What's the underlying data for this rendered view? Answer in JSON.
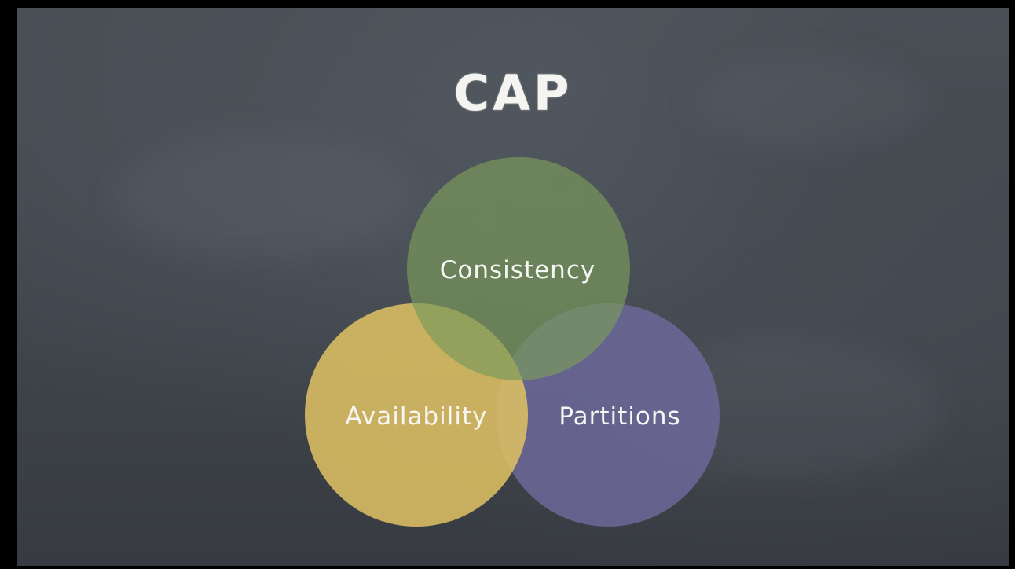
{
  "title": "CAP",
  "venn": {
    "circles": [
      {
        "id": "consistency",
        "label": "Consistency",
        "color": "#7a9a5c"
      },
      {
        "id": "availability",
        "label": "Availability",
        "color": "#dcbf63"
      },
      {
        "id": "partitions",
        "label": "Partitions",
        "color": "#6e6a9c"
      }
    ]
  },
  "colors": {
    "board": "#43484f",
    "chalk": "#f4f4f0"
  }
}
